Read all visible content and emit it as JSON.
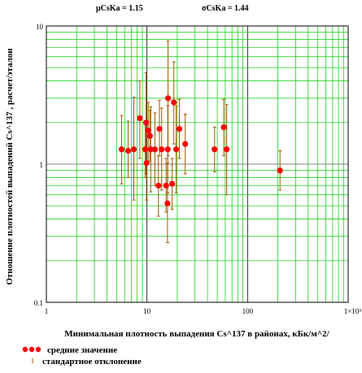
{
  "chart_data": {
    "type": "scatter",
    "stats": [
      {
        "label": "μCsKa = 1.15"
      },
      {
        "label": "σCsKa = 1.44"
      }
    ],
    "xscale": "log",
    "yscale": "log",
    "xlim": [
      1,
      1000
    ],
    "ylim": [
      0.1,
      10
    ],
    "x_ticks": [
      "1",
      "10",
      "100",
      "1×10³"
    ],
    "y_ticks": [
      "10",
      "1",
      "0.1"
    ],
    "xlabel": "Минимальная плотность выпадения Cs^137  в районах, кБк/м^2/",
    "ylabel": "Отношение плотностей выпадений Cs^137 ,  расчет/эталон",
    "reference_line_y": 1,
    "grid": true,
    "colors": {
      "points": "#ff0000",
      "error_bars": "#a05a00",
      "grid": "#00cc00",
      "reference": "#808080"
    },
    "legend": [
      {
        "label": "средние значение",
        "marker": "filled-circles"
      },
      {
        "label": "стандартное отклонение",
        "marker": "dot"
      }
    ],
    "points": [
      {
        "x": 5.6,
        "y": 1.28,
        "lo": 0.72,
        "hi": 2.25
      },
      {
        "x": 6.5,
        "y": 1.25,
        "lo": 0.8,
        "hi": 2.05
      },
      {
        "x": 7.4,
        "y": 1.28,
        "lo": 0.55,
        "hi": 3.05
      },
      {
        "x": 8.5,
        "y": 2.15,
        "lo": 1.1,
        "hi": 4.0
      },
      {
        "x": 9.6,
        "y": 1.28,
        "lo": 0.8,
        "hi": 2.05
      },
      {
        "x": 9.8,
        "y": 2.0,
        "lo": 0.85,
        "hi": 4.6
      },
      {
        "x": 9.9,
        "y": 1.02,
        "lo": 0.55,
        "hi": 1.9
      },
      {
        "x": 10.3,
        "y": 1.75,
        "lo": 1.05,
        "hi": 2.8
      },
      {
        "x": 10.7,
        "y": 1.6,
        "lo": 1.05,
        "hi": 2.45
      },
      {
        "x": 10.9,
        "y": 1.28,
        "lo": 0.63,
        "hi": 2.6
      },
      {
        "x": 12.0,
        "y": 1.28,
        "lo": 0.7,
        "hi": 2.35
      },
      {
        "x": 13.0,
        "y": 0.7,
        "lo": 0.42,
        "hi": 1.15
      },
      {
        "x": 13.3,
        "y": 1.8,
        "lo": 1.15,
        "hi": 2.9
      },
      {
        "x": 14.0,
        "y": 1.28,
        "lo": 0.65,
        "hi": 2.55
      },
      {
        "x": 15.5,
        "y": 0.7,
        "lo": 0.45,
        "hi": 1.1
      },
      {
        "x": 16.0,
        "y": 0.52,
        "lo": 0.27,
        "hi": 1.02
      },
      {
        "x": 16.1,
        "y": 1.28,
        "lo": 0.62,
        "hi": 2.65
      },
      {
        "x": 16.2,
        "y": 3.0,
        "lo": 1.15,
        "hi": 7.8
      },
      {
        "x": 17.8,
        "y": 0.72,
        "lo": 0.47,
        "hi": 1.1
      },
      {
        "x": 18.5,
        "y": 2.8,
        "lo": 1.4,
        "hi": 5.5
      },
      {
        "x": 19.5,
        "y": 1.28,
        "lo": 0.62,
        "hi": 2.65
      },
      {
        "x": 21.0,
        "y": 1.8,
        "lo": 1.1,
        "hi": 2.95
      },
      {
        "x": 24.0,
        "y": 1.4,
        "lo": 0.85,
        "hi": 2.3
      },
      {
        "x": 47.0,
        "y": 1.28,
        "lo": 0.88,
        "hi": 1.85
      },
      {
        "x": 58.0,
        "y": 1.85,
        "lo": 1.15,
        "hi": 2.95
      },
      {
        "x": 62.0,
        "y": 1.28,
        "lo": 0.6,
        "hi": 2.7
      },
      {
        "x": 210.0,
        "y": 0.9,
        "lo": 0.65,
        "hi": 1.25
      }
    ]
  }
}
